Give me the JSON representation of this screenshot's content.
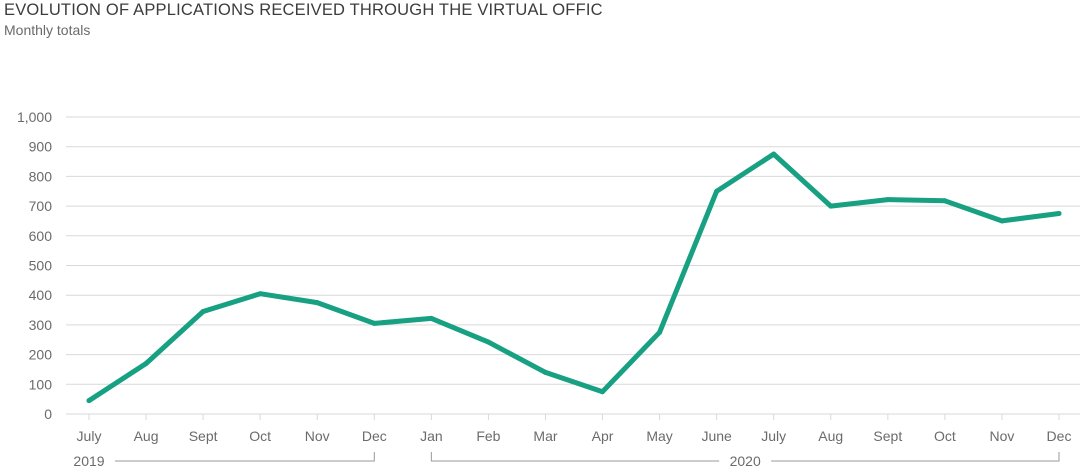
{
  "chart_data": {
    "type": "line",
    "title": "EVOLUTION OF APPLICATIONS RECEIVED THROUGH THE VIRTUAL OFFIC",
    "subtitle": "Monthly totals",
    "categories": [
      "July",
      "Aug",
      "Sept",
      "Oct",
      "Nov",
      "Dec",
      "Jan",
      "Feb",
      "Mar",
      "Apr",
      "May",
      "June",
      "July",
      "Aug",
      "Sept",
      "Oct",
      "Nov",
      "Dec"
    ],
    "series": [
      {
        "values": [
          45,
          170,
          345,
          405,
          375,
          305,
          322,
          242,
          140,
          75,
          275,
          750,
          875,
          700,
          722,
          718,
          650,
          675
        ]
      }
    ],
    "ylim": [
      0,
      1000
    ],
    "yticks": [
      0,
      100,
      200,
      300,
      400,
      500,
      600,
      700,
      800,
      900,
      1000
    ],
    "ytick_labels": [
      "0",
      "100",
      "200",
      "300",
      "400",
      "500",
      "600",
      "700",
      "800",
      "900",
      "1,000"
    ],
    "year_groups": [
      {
        "label": "2019",
        "start": 0,
        "end": 5
      },
      {
        "label": "2020",
        "start": 6,
        "end": 17
      }
    ],
    "grid": true,
    "line_color": "#17a082"
  }
}
